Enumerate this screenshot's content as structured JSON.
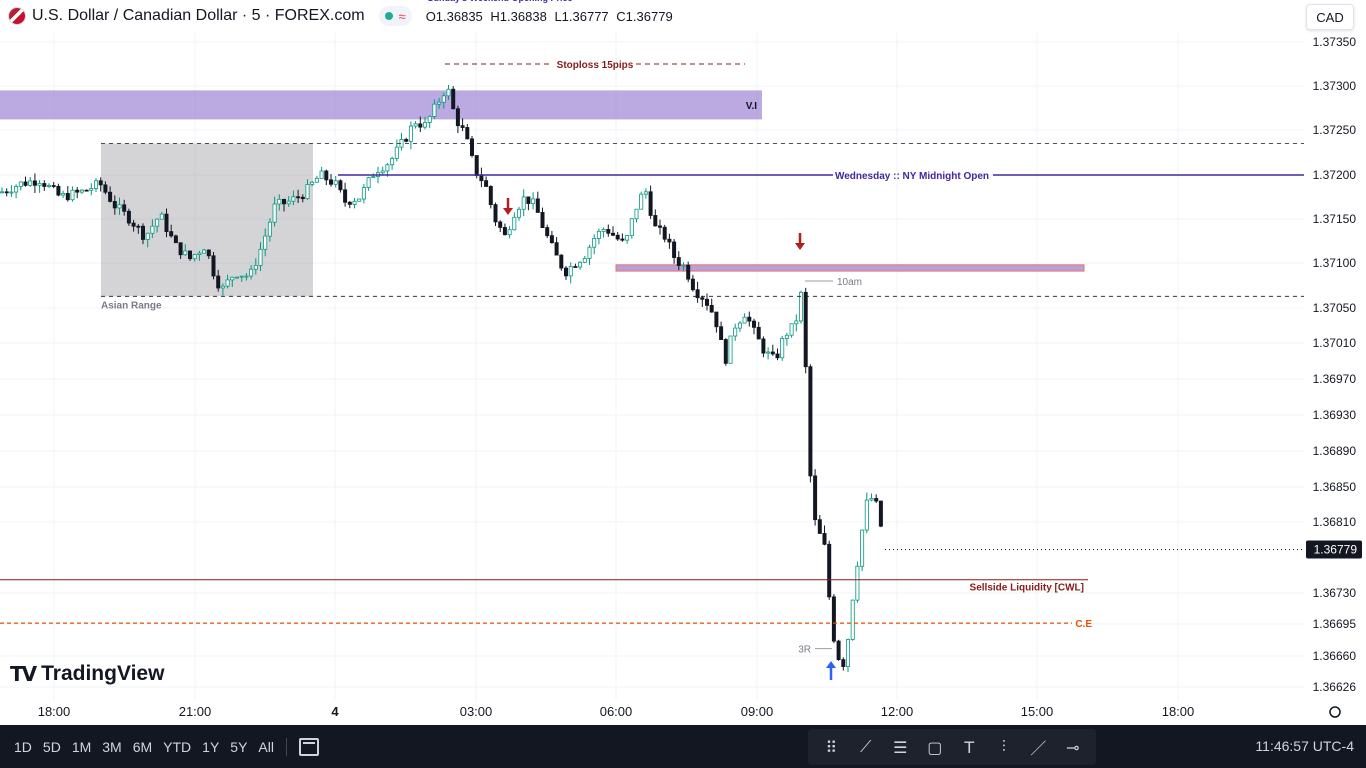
{
  "header": {
    "title": "U.S. Dollar / Canadian Dollar · 5 · FOREX.com",
    "ohlc": {
      "open": "O1.36835",
      "high": "H1.36838",
      "low": "L1.36777",
      "close": "C1.36779"
    },
    "currency_button": "CAD",
    "partial_label": "Sunday’s Weekend Opening Price"
  },
  "logo": {
    "text": "TradingView"
  },
  "toolbar": {
    "ranges": [
      "1D",
      "5D",
      "1M",
      "3M",
      "6M",
      "YTD",
      "1Y",
      "5Y",
      "All"
    ],
    "draw_tools": [
      "drag-handle-icon",
      "trendline-icon",
      "fib-icon",
      "rectangle-icon",
      "text-icon",
      "long-position-icon",
      "ray-icon",
      "horizontal-ray-icon"
    ],
    "clock": "11:46:57 UTC-4"
  },
  "colors": {
    "up": "#089981",
    "down": "#131722",
    "fvg": "#b39ddb",
    "midnight": "#4527a0",
    "stoploss": "#8b1a1a",
    "sellside": "#8b1a1a",
    "ce": "#e65100",
    "arrow_down": "#b71c1c",
    "arrow_up": "#2962ff"
  },
  "chart_data": {
    "type": "candlestick",
    "symbol": "USDCAD",
    "timeframe": "5",
    "current_price": "1.36779",
    "y_ticks": [
      "1.37350",
      "1.37300",
      "1.37250",
      "1.37200",
      "1.37150",
      "1.37100",
      "1.37050",
      "1.37010",
      "1.36970",
      "1.36930",
      "1.36890",
      "1.36850",
      "1.36810",
      "1.36730",
      "1.36695",
      "1.36660",
      "1.36626"
    ],
    "x_ticks": [
      "18:00",
      "21:00",
      "4",
      "03:00",
      "06:00",
      "09:00",
      "12:00",
      "15:00",
      "18:00"
    ],
    "annotations": {
      "stoploss": {
        "label": "Stoploss 15pips",
        "price": 1.37325
      },
      "vi_zone": {
        "label": "V.I",
        "top": 1.37295,
        "bottom": 1.37262
      },
      "midnight_open": {
        "label": "Wednesday :: NY Midnight Open",
        "price": 1.372
      },
      "asian_range": {
        "label": "Asian Range",
        "top": 1.37235,
        "bottom": 1.37063
      },
      "fvg_zone": {
        "top": 1.37098,
        "bottom": 1.37091
      },
      "ten_am": {
        "label": "10am",
        "price": 1.3708
      },
      "sellside": {
        "label": "Sellside Liquidity [CWL]",
        "price": 1.36745
      },
      "ce": {
        "label": "C.E",
        "price": 1.36696
      },
      "three_r": {
        "label": "3R",
        "price": 1.36668
      }
    },
    "price_path": [
      [
        0,
        1.3718
      ],
      [
        20,
        1.3719
      ],
      [
        40,
        1.37195
      ],
      [
        60,
        1.37175
      ],
      [
        80,
        1.3718
      ],
      [
        100,
        1.3719
      ],
      [
        115,
        1.37165
      ],
      [
        130,
        1.3715
      ],
      [
        145,
        1.3713
      ],
      [
        160,
        1.37155
      ],
      [
        175,
        1.3712
      ],
      [
        190,
        1.37105
      ],
      [
        205,
        1.3712
      ],
      [
        215,
        1.37085
      ],
      [
        222,
        1.3707
      ],
      [
        235,
        1.3709
      ],
      [
        250,
        1.37085
      ],
      [
        262,
        1.3712
      ],
      [
        275,
        1.37165
      ],
      [
        290,
        1.3717
      ],
      [
        305,
        1.3718
      ],
      [
        320,
        1.372
      ],
      [
        335,
        1.3719
      ],
      [
        345,
        1.3717
      ],
      [
        360,
        1.37175
      ],
      [
        375,
        1.37205
      ],
      [
        390,
        1.37215
      ],
      [
        405,
        1.3724
      ],
      [
        415,
        1.3726
      ],
      [
        425,
        1.37255
      ],
      [
        435,
        1.37275
      ],
      [
        447,
        1.373
      ],
      [
        455,
        1.37265
      ],
      [
        465,
        1.37245
      ],
      [
        475,
        1.37205
      ],
      [
        485,
        1.3719
      ],
      [
        495,
        1.3715
      ],
      [
        505,
        1.3713
      ],
      [
        515,
        1.3716
      ],
      [
        525,
        1.37175
      ],
      [
        535,
        1.37165
      ],
      [
        545,
        1.37135
      ],
      [
        555,
        1.3711
      ],
      [
        565,
        1.3709
      ],
      [
        575,
        1.371
      ],
      [
        585,
        1.3711
      ],
      [
        595,
        1.3713
      ],
      [
        605,
        1.3714
      ],
      [
        615,
        1.3713
      ],
      [
        625,
        1.3712
      ],
      [
        635,
        1.3716
      ],
      [
        645,
        1.37185
      ],
      [
        655,
        1.3714
      ],
      [
        665,
        1.3713
      ],
      [
        675,
        1.37105
      ],
      [
        685,
        1.37095
      ],
      [
        695,
        1.3707
      ],
      [
        705,
        1.3706
      ],
      [
        715,
        1.3704
      ],
      [
        725,
        1.3699
      ],
      [
        735,
        1.3703
      ],
      [
        745,
        1.37045
      ],
      [
        755,
        1.3702
      ],
      [
        765,
        1.37
      ],
      [
        775,
        1.3699
      ],
      [
        785,
        1.3702
      ],
      [
        795,
        1.3703
      ],
      [
        802,
        1.3707
      ],
      [
        807,
        1.3695
      ],
      [
        812,
        1.3682
      ],
      [
        818,
        1.368
      ],
      [
        825,
        1.3678
      ],
      [
        832,
        1.3669
      ],
      [
        838,
        1.3666
      ],
      [
        845,
        1.3665
      ],
      [
        852,
        1.3672
      ],
      [
        858,
        1.3677
      ],
      [
        866,
        1.3683
      ],
      [
        874,
        1.3684
      ],
      [
        882,
        1.368
      ],
      [
        885,
        1.36779
      ]
    ]
  }
}
